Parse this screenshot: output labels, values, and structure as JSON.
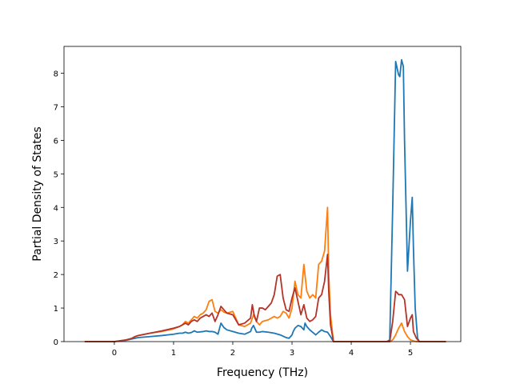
{
  "chart_data": {
    "type": "line",
    "title": "",
    "xlabel": "Frequency (THz)",
    "ylabel": "Partial Density of States",
    "xlim": [
      -0.85,
      5.85
    ],
    "ylim": [
      0,
      8.8
    ],
    "xticks": [
      0,
      1,
      2,
      3,
      4,
      5
    ],
    "yticks": [
      0,
      1,
      2,
      3,
      4,
      5,
      6,
      7,
      8
    ],
    "grid": false,
    "legend": "none",
    "series": [
      {
        "color": "#1f77b4",
        "x": [
          -0.5,
          0.0,
          0.2,
          0.3,
          0.35,
          0.4,
          0.6,
          0.8,
          1.0,
          1.1,
          1.15,
          1.2,
          1.25,
          1.3,
          1.35,
          1.4,
          1.5,
          1.55,
          1.6,
          1.65,
          1.7,
          1.75,
          1.8,
          1.85,
          1.9,
          2.0,
          2.1,
          2.2,
          2.3,
          2.32,
          2.35,
          2.4,
          2.45,
          2.5,
          2.6,
          2.7,
          2.8,
          2.9,
          2.95,
          3.0,
          3.02,
          3.05,
          3.1,
          3.15,
          3.2,
          3.22,
          3.25,
          3.3,
          3.4,
          3.45,
          3.5,
          3.55,
          3.6,
          3.65,
          3.7,
          4.6,
          4.65,
          4.7,
          4.75,
          4.8,
          4.82,
          4.85,
          4.88,
          4.9,
          4.95,
          5.0,
          5.03,
          5.05,
          5.08,
          5.12,
          5.15,
          5.6
        ],
        "y": [
          0.0,
          0.0,
          0.04,
          0.08,
          0.1,
          0.12,
          0.15,
          0.18,
          0.22,
          0.25,
          0.25,
          0.28,
          0.25,
          0.27,
          0.32,
          0.28,
          0.3,
          0.32,
          0.3,
          0.3,
          0.28,
          0.22,
          0.55,
          0.42,
          0.35,
          0.3,
          0.25,
          0.22,
          0.3,
          0.4,
          0.48,
          0.28,
          0.28,
          0.3,
          0.28,
          0.25,
          0.2,
          0.12,
          0.1,
          0.2,
          0.3,
          0.4,
          0.48,
          0.45,
          0.35,
          0.55,
          0.45,
          0.35,
          0.2,
          0.28,
          0.35,
          0.3,
          0.28,
          0.15,
          0.0,
          0.0,
          0.05,
          4.0,
          8.35,
          7.95,
          7.9,
          8.4,
          8.2,
          6.0,
          2.1,
          3.6,
          4.3,
          2.8,
          1.0,
          0.1,
          0.0,
          0.0
        ]
      },
      {
        "color": "#ff7f0e",
        "x": [
          -0.5,
          0.0,
          0.2,
          0.3,
          0.35,
          0.4,
          0.6,
          0.8,
          1.0,
          1.1,
          1.15,
          1.2,
          1.25,
          1.3,
          1.35,
          1.4,
          1.45,
          1.5,
          1.55,
          1.6,
          1.65,
          1.7,
          1.75,
          1.8,
          1.85,
          1.9,
          2.0,
          2.1,
          2.2,
          2.3,
          2.35,
          2.4,
          2.45,
          2.5,
          2.6,
          2.7,
          2.75,
          2.8,
          2.85,
          2.9,
          2.95,
          3.0,
          3.05,
          3.1,
          3.15,
          3.2,
          3.25,
          3.3,
          3.35,
          3.4,
          3.45,
          3.5,
          3.55,
          3.6,
          3.62,
          3.65,
          3.7,
          4.65,
          4.7,
          4.75,
          4.8,
          4.85,
          4.9,
          4.95,
          5.0,
          5.05,
          5.1,
          5.15,
          5.6
        ],
        "y": [
          0.0,
          0.0,
          0.05,
          0.1,
          0.15,
          0.18,
          0.25,
          0.3,
          0.38,
          0.45,
          0.5,
          0.6,
          0.55,
          0.65,
          0.75,
          0.7,
          0.8,
          0.85,
          0.95,
          1.2,
          1.25,
          0.9,
          0.85,
          0.95,
          0.88,
          0.85,
          0.9,
          0.5,
          0.45,
          0.55,
          0.8,
          0.6,
          0.5,
          0.6,
          0.65,
          0.75,
          0.7,
          0.75,
          0.9,
          0.85,
          0.7,
          1.0,
          1.8,
          1.4,
          1.3,
          2.3,
          1.5,
          1.3,
          1.4,
          1.3,
          2.3,
          2.4,
          2.7,
          4.0,
          2.0,
          0.8,
          0.0,
          0.0,
          0.05,
          0.2,
          0.4,
          0.55,
          0.3,
          0.15,
          0.05,
          0.02,
          0.0,
          0.0,
          0.0
        ]
      },
      {
        "color": "#b5342a",
        "x": [
          -0.5,
          0.0,
          0.2,
          0.3,
          0.35,
          0.4,
          0.6,
          0.8,
          1.0,
          1.1,
          1.15,
          1.2,
          1.25,
          1.3,
          1.35,
          1.4,
          1.45,
          1.5,
          1.55,
          1.6,
          1.65,
          1.7,
          1.75,
          1.8,
          1.85,
          1.9,
          2.0,
          2.1,
          2.2,
          2.3,
          2.33,
          2.36,
          2.4,
          2.45,
          2.5,
          2.55,
          2.6,
          2.65,
          2.7,
          2.75,
          2.8,
          2.85,
          2.9,
          2.95,
          3.0,
          3.05,
          3.1,
          3.15,
          3.2,
          3.25,
          3.3,
          3.35,
          3.4,
          3.45,
          3.5,
          3.55,
          3.6,
          3.62,
          3.65,
          3.7,
          4.65,
          4.7,
          4.75,
          4.78,
          4.8,
          4.85,
          4.9,
          4.95,
          5.0,
          5.03,
          5.05,
          5.1,
          5.15,
          5.6
        ],
        "y": [
          0.0,
          0.0,
          0.05,
          0.1,
          0.15,
          0.18,
          0.25,
          0.32,
          0.4,
          0.45,
          0.5,
          0.55,
          0.5,
          0.6,
          0.65,
          0.6,
          0.7,
          0.75,
          0.8,
          0.75,
          0.85,
          0.6,
          0.8,
          1.05,
          0.95,
          0.85,
          0.8,
          0.5,
          0.55,
          0.7,
          1.1,
          0.8,
          0.6,
          1.0,
          1.0,
          0.95,
          1.05,
          1.15,
          1.4,
          1.95,
          2.0,
          1.3,
          0.95,
          0.9,
          1.3,
          1.6,
          1.2,
          0.8,
          1.1,
          0.7,
          0.6,
          0.65,
          0.75,
          1.3,
          1.4,
          1.8,
          2.6,
          1.5,
          0.5,
          0.0,
          0.0,
          0.6,
          1.5,
          1.45,
          1.4,
          1.4,
          1.25,
          0.45,
          0.7,
          0.8,
          0.3,
          0.1,
          0.0,
          0.0
        ]
      }
    ]
  }
}
